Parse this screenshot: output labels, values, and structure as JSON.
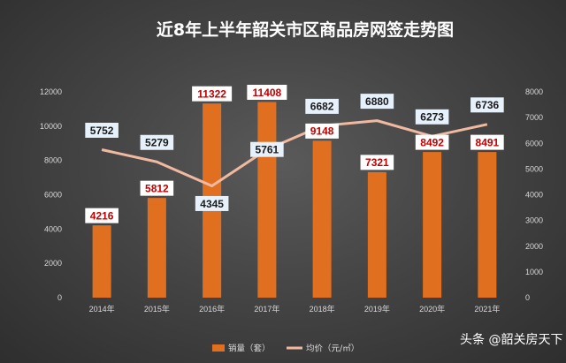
{
  "chart_data": {
    "type": "bar+line",
    "title": "近8年上半年韶关市区商品房网签走势图",
    "categories": [
      "2014年",
      "2015年",
      "2016年",
      "2017年",
      "2018年",
      "2019年",
      "2020年",
      "2021年"
    ],
    "series": [
      {
        "name": "销量（套）",
        "type": "bar",
        "axis": "left",
        "color": "#e07020",
        "values": [
          4216,
          5812,
          11322,
          11408,
          9148,
          7321,
          8492,
          8491
        ]
      },
      {
        "name": "均价（元/㎡）",
        "type": "line",
        "axis": "right",
        "color": "#f0b9a0",
        "values": [
          5752,
          5279,
          4345,
          5761,
          6682,
          6880,
          6273,
          6736
        ]
      }
    ],
    "y_left": {
      "min": 0,
      "max": 12000,
      "ticks": [
        "0",
        "2000",
        "4000",
        "6000",
        "8000",
        "10000",
        "12000"
      ]
    },
    "y_right": {
      "min": 0,
      "max": 8000,
      "ticks": [
        "0",
        "1000",
        "2000",
        "3000",
        "4000",
        "5000",
        "6000",
        "7000",
        "8000"
      ]
    },
    "grid": false,
    "legend_position": "bottom"
  },
  "watermark": "头条 @韶关房天下"
}
